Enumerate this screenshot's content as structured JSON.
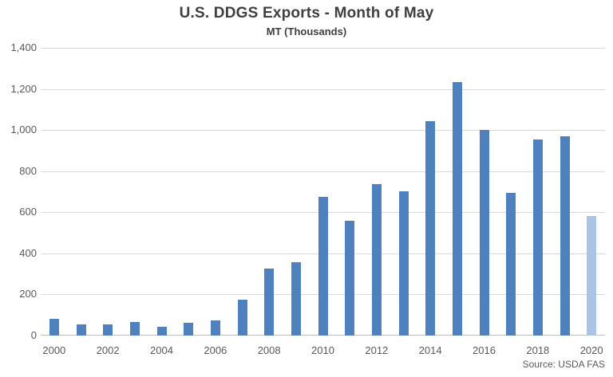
{
  "chart_data": {
    "type": "bar",
    "title": "U.S. DDGS Exports - Month of May",
    "subtitle": "MT (Thousands)",
    "categories": [
      "2000",
      "2001",
      "2002",
      "2003",
      "2004",
      "2005",
      "2006",
      "2007",
      "2008",
      "2009",
      "2010",
      "2011",
      "2012",
      "2013",
      "2014",
      "2015",
      "2016",
      "2017",
      "2018",
      "2019",
      "2020"
    ],
    "values": [
      80,
      55,
      56,
      67,
      42,
      61,
      73,
      175,
      324,
      357,
      673,
      560,
      736,
      703,
      1042,
      1233,
      1000,
      696,
      956,
      970,
      581
    ],
    "ylim": [
      0,
      1400
    ],
    "ytick_values": [
      0,
      200,
      400,
      600,
      800,
      1000,
      1200,
      1400
    ],
    "ytick_labels": [
      "0",
      "200",
      "400",
      "600",
      "800",
      "1,000",
      "1,200",
      "1,400"
    ],
    "xtick_every": 2,
    "grid": true,
    "legend": "none",
    "source": "Source: USDA FAS",
    "colors": {
      "bar": "#4E81BD",
      "bar_highlight": "#A9C4E4",
      "highlight_index": 20,
      "gridline": "#D9D9D9",
      "axis_line": "#BFBFBF",
      "tick_text": "#595959",
      "title_text": "#3F3F3F",
      "source_text": "#595959"
    }
  }
}
